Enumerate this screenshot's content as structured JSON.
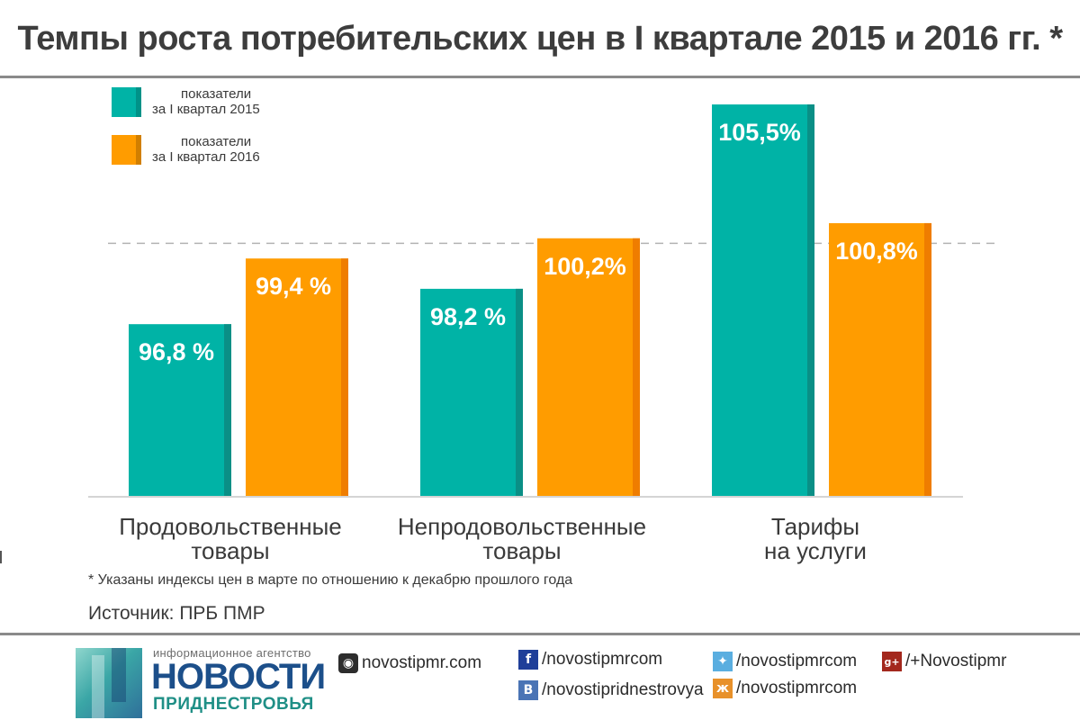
{
  "title": "Темпы роста потребительских цен в I квартале 2015 и 2016 гг. *",
  "legend": [
    {
      "line1": "показатели",
      "line2": "за I квартал 2015",
      "color": "#00b3a6"
    },
    {
      "line1": "показатели",
      "line2": "за I квартал 2016",
      "color": "#ff9c00"
    }
  ],
  "categories_text": [
    {
      "line1": "Продовольственные",
      "line2": "товары"
    },
    {
      "line1": "Непродовольственные",
      "line2": "товары"
    },
    {
      "line1": "Тарифы",
      "line2": "на услуги"
    }
  ],
  "chart_data": {
    "type": "bar",
    "categories": [
      "Продовольственные товары",
      "Непродовольственные товары",
      "Тарифы на услуги"
    ],
    "series": [
      {
        "name": "показатели за I квартал 2015",
        "values": [
          96.8,
          98.2,
          105.5
        ],
        "labels": [
          "96,8 %",
          "98,2 %",
          "105,5%"
        ],
        "color": "#00b3a6"
      },
      {
        "name": "показатели за I квартал 2016",
        "values": [
          99.4,
          100.2,
          100.8
        ],
        "labels": [
          "99,4 %",
          "100,2%",
          "100,8%"
        ],
        "color": "#ff9c00"
      }
    ],
    "reference_line": 100,
    "ylim": [
      90,
      106.5
    ],
    "title": "Темпы роста потребительских цен в I квартале 2015 и 2016 гг. *",
    "xlabel": "",
    "ylabel": "",
    "grid": false
  },
  "footnote": "* Указаны индексы цен в марте по отношению к декабрю прошлого года",
  "source": "Источник: ПРБ ПМР",
  "footer": {
    "agency_small": "информационное агентство",
    "agency_name": "НОВОСТИ",
    "agency_sub": "ПРИДНЕСТРОВЬЯ",
    "links": [
      {
        "icon": "globe-icon",
        "glyph": "◉",
        "text": "novostipmr.com",
        "color": "#2d2d2d"
      },
      {
        "icon": "facebook-icon",
        "glyph": "f",
        "text": "/novostipmrcom",
        "color": "#1f3f99"
      },
      {
        "icon": "vk-icon",
        "glyph": "B",
        "text": "/novostipridnestrovya",
        "color": "#4a74b5"
      },
      {
        "icon": "twitter-icon",
        "glyph": "✦",
        "text": "/novostipmrcom",
        "color": "#5aaee0"
      },
      {
        "icon": "odnoklassniki-icon",
        "glyph": "ж",
        "text": "/novostipmrcom",
        "color": "#e8912a"
      },
      {
        "icon": "google-plus-icon",
        "glyph": "g+",
        "text": "/+Novostipmr",
        "color": "#a3281d"
      }
    ]
  }
}
